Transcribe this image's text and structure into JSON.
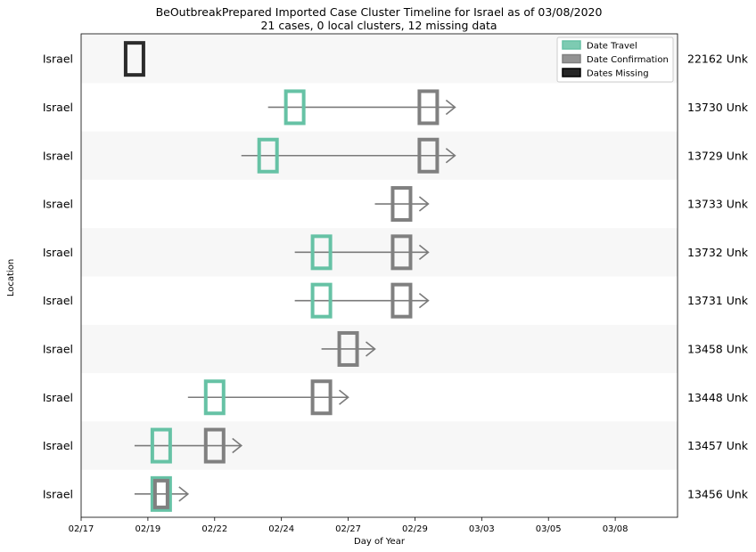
{
  "chart_data": {
    "type": "timeline",
    "title": "BeOutbreakPrepared Imported Case Cluster Timeline for Israel as of 03/08/2020",
    "subtitle": "21 cases, 0 local clusters, 12 missing data",
    "xlabel": "Day of Year",
    "ylabel": "Location",
    "x_tick_labels": [
      "02/17",
      "02/19",
      "02/22",
      "02/24",
      "02/27",
      "02/29",
      "03/03",
      "03/05",
      "03/08"
    ],
    "x_tick_days": [
      0,
      3,
      6,
      9,
      12,
      15,
      18,
      21,
      24
    ],
    "x_range_days": [
      0,
      26.8
    ],
    "legend": {
      "placement": "top-right",
      "entries": [
        {
          "label": "Date Travel",
          "color": "#66c2a5"
        },
        {
          "label": "Date Confirmation",
          "color": "#808080"
        },
        {
          "label": "Dates Missing",
          "color": "#000000"
        }
      ]
    },
    "colors": {
      "travel": "#66c2a5",
      "confirmation": "#808080",
      "missing": "#2b2b2b",
      "band": "#f7f7f7",
      "arrow": "#7a7a7a"
    },
    "rows": [
      {
        "location": "Israel",
        "case": "22162 Unk",
        "travel_day": null,
        "confirm_day": null,
        "missing_day": 2.4,
        "arrow_start": null,
        "arrow_end": null
      },
      {
        "location": "Israel",
        "case": "13730 Unk",
        "travel_day": 9.6,
        "confirm_day": 15.6,
        "missing_day": null,
        "arrow_start": 8.4,
        "arrow_end": 16.8
      },
      {
        "location": "Israel",
        "case": "13729 Unk",
        "travel_day": 8.4,
        "confirm_day": 15.6,
        "missing_day": null,
        "arrow_start": 7.2,
        "arrow_end": 16.8
      },
      {
        "location": "Israel",
        "case": "13733 Unk",
        "travel_day": null,
        "confirm_day": 14.4,
        "missing_day": null,
        "arrow_start": 13.2,
        "arrow_end": 15.6
      },
      {
        "location": "Israel",
        "case": "13732 Unk",
        "travel_day": 10.8,
        "confirm_day": 14.4,
        "missing_day": null,
        "arrow_start": 9.6,
        "arrow_end": 15.6
      },
      {
        "location": "Israel",
        "case": "13731 Unk",
        "travel_day": 10.8,
        "confirm_day": 14.4,
        "missing_day": null,
        "arrow_start": 9.6,
        "arrow_end": 15.6
      },
      {
        "location": "Israel",
        "case": "13458 Unk",
        "travel_day": null,
        "confirm_day": 12.0,
        "missing_day": null,
        "arrow_start": 10.8,
        "arrow_end": 13.2
      },
      {
        "location": "Israel",
        "case": "13448 Unk",
        "travel_day": 6.0,
        "confirm_day": 10.8,
        "missing_day": null,
        "arrow_start": 4.8,
        "arrow_end": 12.0
      },
      {
        "location": "Israel",
        "case": "13457 Unk",
        "travel_day": 3.6,
        "confirm_day": 6.0,
        "missing_day": null,
        "arrow_start": 2.4,
        "arrow_end": 7.2
      },
      {
        "location": "Israel",
        "case": "13456 Unk",
        "travel_day": 3.6,
        "confirm_day": 3.6,
        "missing_day": null,
        "arrow_start": 2.4,
        "arrow_end": 4.8
      }
    ]
  }
}
